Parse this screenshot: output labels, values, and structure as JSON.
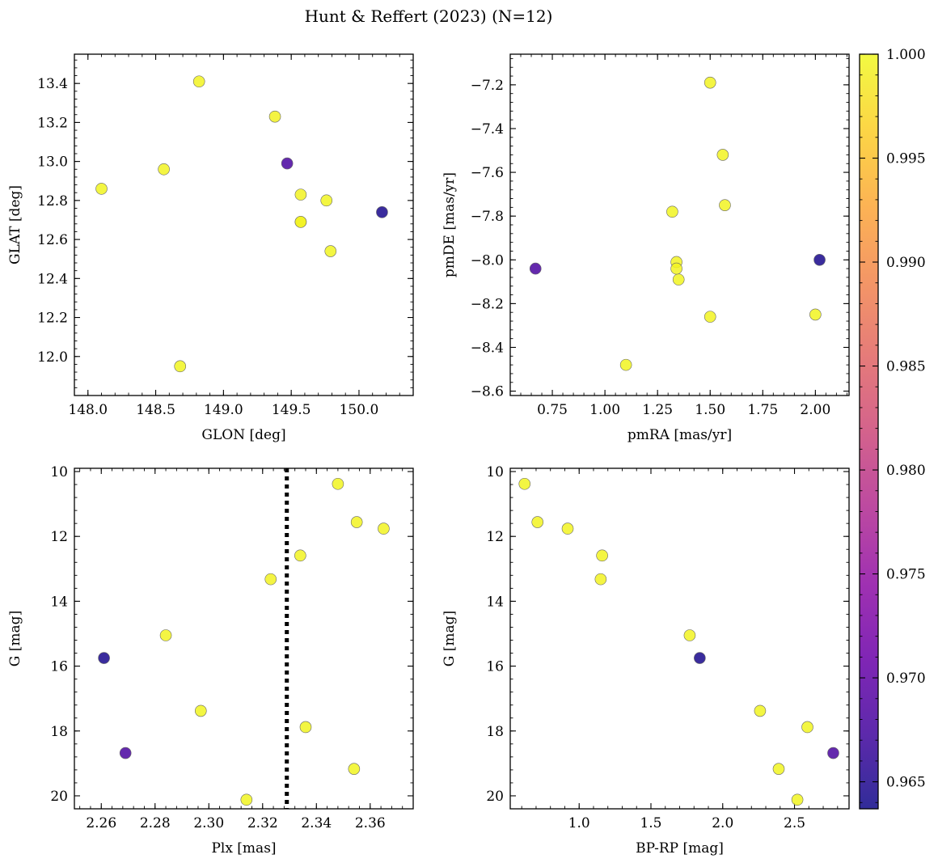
{
  "title": "Hunt & Reffert (2023) (N=12)",
  "colorbar": {
    "min": 0.9637,
    "max": 1.0,
    "ticks": [
      0.965,
      0.97,
      0.975,
      0.98,
      0.985,
      0.99,
      0.995,
      1.0
    ],
    "tick_labels": [
      "0.965",
      "0.970",
      "0.975",
      "0.980",
      "0.985",
      "0.990",
      "0.995",
      "1.000"
    ],
    "colormap": "plasma"
  },
  "chart_data": [
    {
      "type": "scatter",
      "xlabel": "GLON [deg]",
      "ylabel": "GLAT [deg]",
      "xlim": [
        147.9,
        150.4
      ],
      "ylim": [
        11.8,
        13.55
      ],
      "xticks": [
        148.0,
        148.5,
        149.0,
        149.5,
        150.0
      ],
      "xtick_labels": [
        "148.0",
        "148.5",
        "149.0",
        "149.5",
        "150.0"
      ],
      "yticks": [
        12.0,
        12.2,
        12.4,
        12.6,
        12.8,
        13.0,
        13.2,
        13.4
      ],
      "ytick_labels": [
        "12.0",
        "12.2",
        "12.4",
        "12.6",
        "12.8",
        "13.0",
        "13.2",
        "13.4"
      ],
      "points": [
        {
          "x": 148.82,
          "y": 13.41,
          "c": 0.9995
        },
        {
          "x": 149.38,
          "y": 13.23,
          "c": 0.9993
        },
        {
          "x": 149.47,
          "y": 12.99,
          "c": 0.968
        },
        {
          "x": 148.56,
          "y": 12.96,
          "c": 0.9995
        },
        {
          "x": 148.1,
          "y": 12.86,
          "c": 0.9996
        },
        {
          "x": 149.57,
          "y": 12.83,
          "c": 0.9994
        },
        {
          "x": 149.76,
          "y": 12.8,
          "c": 0.9996
        },
        {
          "x": 150.17,
          "y": 12.74,
          "c": 0.9645
        },
        {
          "x": 149.57,
          "y": 12.69,
          "c": 0.9994
        },
        {
          "x": 149.57,
          "y": 12.69,
          "c": 0.9995
        },
        {
          "x": 149.79,
          "y": 12.54,
          "c": 0.9996
        },
        {
          "x": 148.68,
          "y": 11.95,
          "c": 0.9997
        }
      ]
    },
    {
      "type": "scatter",
      "xlabel": "pmRA [mas/yr]",
      "ylabel": "pmDE [mas/yr]",
      "xlim": [
        0.55,
        2.16
      ],
      "ylim": [
        -8.62,
        -7.06
      ],
      "xticks": [
        0.75,
        1.0,
        1.25,
        1.5,
        1.75,
        2.0
      ],
      "xtick_labels": [
        "0.75",
        "1.00",
        "1.25",
        "1.50",
        "1.75",
        "2.00"
      ],
      "yticks": [
        -8.6,
        -8.4,
        -8.2,
        -8.0,
        -7.8,
        -7.6,
        -7.4,
        -7.2
      ],
      "ytick_labels": [
        "−8.6",
        "−8.4",
        "−8.2",
        "−8.0",
        "−7.8",
        "−7.6",
        "−7.4",
        "−7.2"
      ],
      "points": [
        {
          "x": 1.5,
          "y": -7.19,
          "c": 0.9995
        },
        {
          "x": 1.56,
          "y": -7.52,
          "c": 0.9995
        },
        {
          "x": 1.57,
          "y": -7.75,
          "c": 0.9995
        },
        {
          "x": 1.32,
          "y": -7.78,
          "c": 0.9996
        },
        {
          "x": 2.02,
          "y": -8.0,
          "c": 0.9645
        },
        {
          "x": 1.34,
          "y": -8.01,
          "c": 0.9995
        },
        {
          "x": 1.34,
          "y": -8.04,
          "c": 0.9995
        },
        {
          "x": 0.67,
          "y": -8.04,
          "c": 0.968
        },
        {
          "x": 1.35,
          "y": -8.09,
          "c": 0.9996
        },
        {
          "x": 2.0,
          "y": -8.25,
          "c": 0.9996
        },
        {
          "x": 1.5,
          "y": -8.26,
          "c": 0.9995
        },
        {
          "x": 1.1,
          "y": -8.48,
          "c": 0.9997
        }
      ]
    },
    {
      "type": "scatter",
      "xlabel": "Plx [mas]",
      "ylabel": "G [mag]",
      "xlim": [
        2.25,
        2.376
      ],
      "ylim": [
        20.4,
        9.9
      ],
      "inverted_y": true,
      "xticks": [
        2.26,
        2.28,
        2.3,
        2.32,
        2.34,
        2.36
      ],
      "xtick_labels": [
        "2.26",
        "2.28",
        "2.30",
        "2.32",
        "2.34",
        "2.36"
      ],
      "yticks": [
        10,
        12,
        14,
        16,
        18,
        20
      ],
      "ytick_labels": [
        "10",
        "12",
        "14",
        "16",
        "18",
        "20"
      ],
      "reference_line": {
        "x": 2.329,
        "style": "dotted"
      },
      "points": [
        {
          "x": 2.348,
          "y": 10.38,
          "c": 0.9996
        },
        {
          "x": 2.355,
          "y": 11.56,
          "c": 0.9995
        },
        {
          "x": 2.365,
          "y": 11.76,
          "c": 0.9995
        },
        {
          "x": 2.334,
          "y": 12.59,
          "c": 0.9995
        },
        {
          "x": 2.323,
          "y": 13.32,
          "c": 0.9994
        },
        {
          "x": 2.284,
          "y": 15.05,
          "c": 0.9995
        },
        {
          "x": 2.261,
          "y": 15.75,
          "c": 0.9645
        },
        {
          "x": 2.297,
          "y": 17.38,
          "c": 0.9996
        },
        {
          "x": 2.336,
          "y": 17.88,
          "c": 0.9996
        },
        {
          "x": 2.269,
          "y": 18.68,
          "c": 0.968
        },
        {
          "x": 2.354,
          "y": 19.17,
          "c": 0.9996
        },
        {
          "x": 2.314,
          "y": 20.12,
          "c": 0.9997
        }
      ]
    },
    {
      "type": "scatter",
      "xlabel": "BP-RP [mag]",
      "ylabel": "G [mag]",
      "xlim": [
        0.52,
        2.88
      ],
      "ylim": [
        20.4,
        9.9
      ],
      "inverted_y": true,
      "xticks": [
        1.0,
        1.5,
        2.0,
        2.5
      ],
      "xtick_labels": [
        "1.0",
        "1.5",
        "2.0",
        "2.5"
      ],
      "yticks": [
        10,
        12,
        14,
        16,
        18,
        20
      ],
      "ytick_labels": [
        "10",
        "12",
        "14",
        "16",
        "18",
        "20"
      ],
      "points": [
        {
          "x": 0.62,
          "y": 10.38,
          "c": 0.9996
        },
        {
          "x": 0.71,
          "y": 11.56,
          "c": 0.9995
        },
        {
          "x": 0.92,
          "y": 11.76,
          "c": 0.9995
        },
        {
          "x": 1.16,
          "y": 12.59,
          "c": 0.9995
        },
        {
          "x": 1.15,
          "y": 13.32,
          "c": 0.9994
        },
        {
          "x": 1.77,
          "y": 15.05,
          "c": 0.9995
        },
        {
          "x": 1.84,
          "y": 15.75,
          "c": 0.9645
        },
        {
          "x": 2.26,
          "y": 17.38,
          "c": 0.9996
        },
        {
          "x": 2.59,
          "y": 17.88,
          "c": 0.9996
        },
        {
          "x": 2.77,
          "y": 18.68,
          "c": 0.968
        },
        {
          "x": 2.39,
          "y": 19.17,
          "c": 0.9996
        },
        {
          "x": 2.52,
          "y": 20.12,
          "c": 0.9997
        }
      ]
    }
  ]
}
